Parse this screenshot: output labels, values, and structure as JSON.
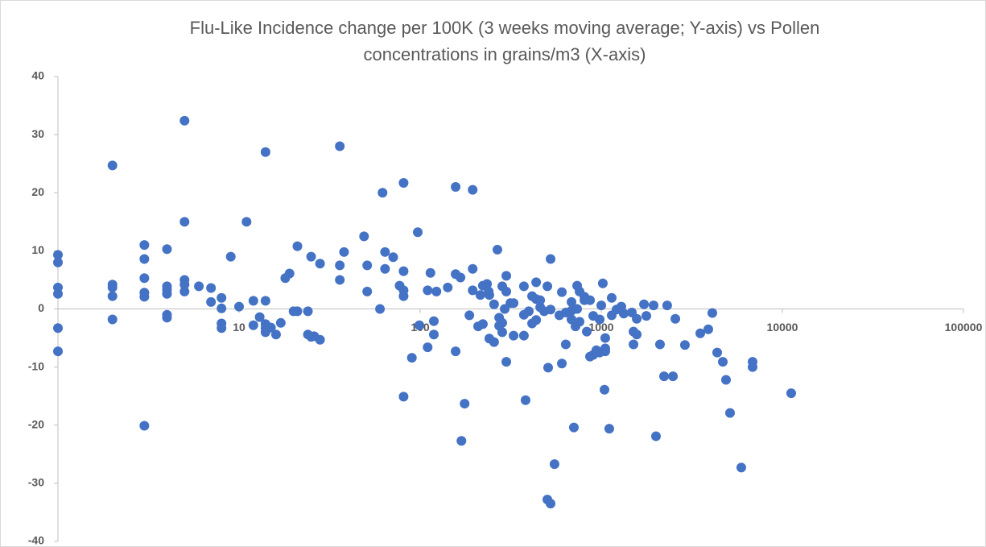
{
  "chart_data": {
    "type": "scatter",
    "title": "Flu-Like Incidence change per 100K (3 weeks moving average; Y-axis) vs Pollen concentrations in grains/m3 (X-axis)",
    "color": "#4472c4",
    "xscale": "log",
    "xlim": [
      1,
      100000
    ],
    "xticks": [
      10,
      100,
      1000,
      10000,
      100000
    ],
    "ylim": [
      -40,
      40
    ],
    "yticks": [
      -40,
      -30,
      -20,
      -10,
      0,
      10,
      20,
      30,
      40
    ],
    "x": [
      1,
      1,
      1,
      1,
      1,
      1,
      2,
      2,
      2,
      2,
      2,
      3,
      3,
      3,
      3,
      3,
      3,
      4,
      4,
      4,
      4,
      4,
      4,
      5,
      5,
      5,
      5,
      5,
      6,
      7,
      7,
      8,
      8,
      8,
      8,
      9,
      10,
      11,
      12,
      12,
      13,
      14,
      14,
      14,
      14,
      14,
      15,
      16,
      17,
      18,
      19,
      20,
      21,
      21,
      24,
      24,
      25,
      25,
      26,
      28,
      28,
      36,
      36,
      36,
      38,
      49,
      51,
      51,
      60,
      62,
      64,
      64,
      71,
      77,
      81,
      81,
      81,
      81,
      81,
      90,
      97,
      99,
      110,
      110,
      114,
      119,
      119,
      123,
      142,
      157,
      157,
      157,
      167,
      169,
      176,
      187,
      195,
      195,
      195,
      209,
      215,
      222,
      222,
      234,
      239,
      241,
      241,
      256,
      256,
      267,
      273,
      273,
      284,
      284,
      284,
      293,
      299,
      299,
      299,
      315,
      328,
      328,
      374,
      374,
      374,
      382,
      398,
      415,
      415,
      437,
      437,
      437,
      460,
      460,
      484,
      504,
      504,
      509,
      525,
      525,
      525,
      552,
      587,
      606,
      606,
      637,
      637,
      685,
      685,
      685,
      706,
      721,
      736,
      736,
      759,
      759,
      807,
      807,
      832,
      867,
      867,
      903,
      903,
      940,
      980,
      980,
      1000,
      1020,
      1042,
      1052,
      1052,
      1052,
      1107,
      1142,
      1142,
      1214,
      1291,
      1331,
      1476,
      1507,
      1507,
      1570,
      1570,
      1722,
      1774,
      1945,
      2005,
      2110,
      2222,
      2312,
      2488,
      2565,
      2897,
      3522,
      3900,
      4105,
      4366,
      4690,
      4885,
      5142,
      5932,
      6850,
      6850,
      11190
    ],
    "values": [
      9.3,
      8,
      3.7,
      2.6,
      -3.3,
      -7.3,
      24.7,
      4.2,
      3.7,
      2.2,
      -1.8,
      11,
      8.6,
      5.3,
      2.8,
      2.1,
      -20.1,
      10.3,
      3.9,
      3.3,
      2.6,
      -1,
      -1.5,
      32.4,
      15,
      5,
      4.2,
      3,
      3.9,
      3.6,
      1.2,
      1.9,
      0.1,
      -2.5,
      -3.3,
      9,
      0.4,
      15,
      1.4,
      -2.8,
      -1.4,
      27,
      1.4,
      -2.6,
      -4,
      -3.3,
      -3.2,
      -4.4,
      -2.4,
      5.3,
      6.1,
      -0.4,
      10.8,
      -0.4,
      -0.4,
      -4.4,
      9,
      -4.8,
      -4.7,
      7.8,
      -5.3,
      28,
      7.5,
      5,
      9.8,
      12.5,
      7.5,
      3,
      0,
      20,
      9.8,
      6.9,
      8.9,
      4,
      21.7,
      3.2,
      2.2,
      6.5,
      -15.1,
      -8.4,
      13.2,
      -2.8,
      3.2,
      -6.6,
      6.2,
      -2.1,
      -4.4,
      3,
      3.7,
      21,
      6,
      -7.3,
      5.4,
      -22.7,
      -16.3,
      -1.1,
      20.5,
      6.9,
      3.2,
      -3,
      2.4,
      4,
      -2.6,
      4.3,
      3,
      2.4,
      -5.1,
      0.8,
      -5.7,
      10.2,
      -1.5,
      -2.9,
      3.9,
      -2.4,
      -4,
      0,
      5.7,
      3,
      -9.1,
      1,
      1,
      -4.6,
      3.9,
      -1,
      -4.6,
      -15.7,
      -0.4,
      2.2,
      -2.5,
      4.6,
      1.7,
      -1.9,
      0.3,
      1.5,
      -0.4,
      3.9,
      -32.8,
      -10.1,
      -33.5,
      8.6,
      -0.1,
      -26.7,
      -1.1,
      -9.4,
      2.9,
      -0.6,
      -6.1,
      1.2,
      -0.3,
      -1.8,
      -20.4,
      -3,
      4,
      0,
      3,
      -2.2,
      2.1,
      1.5,
      -3.9,
      -8.2,
      1.5,
      -1.2,
      -7.9,
      -7.1,
      -1.8,
      -7.5,
      0.6,
      4.4,
      -13.9,
      -5,
      -7.3,
      -6.8,
      -20.6,
      1.9,
      -1.1,
      -0.1,
      0.4,
      -0.8,
      -0.6,
      -3.9,
      -6.1,
      -1.7,
      -4.4,
      0.8,
      -1.2,
      0.6,
      -21.9,
      -6.1,
      -11.6,
      0.6,
      -11.6,
      -1.7,
      -6.2,
      -4.2,
      -3.5,
      -0.7,
      -7.5,
      -9.1,
      -12.2,
      -17.9,
      -27.3,
      -9.1,
      -10,
      -14.5
    ]
  }
}
